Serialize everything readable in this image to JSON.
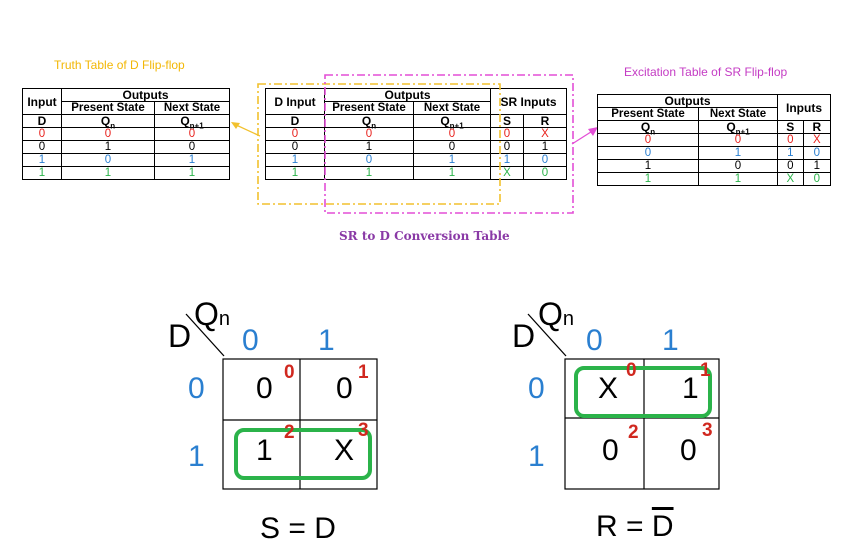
{
  "captions": {
    "d_truth": "Truth Table of D Flip-flop",
    "sr_excitation": "Excitation Table of SR Flip-flop",
    "conversion": "SR to D Conversion Table"
  },
  "headers": {
    "input": "Input",
    "d_input": "D Input",
    "outputs": "Outputs",
    "present_state": "Present State",
    "next_state": "Next State",
    "sr_inputs": "SR Inputs",
    "inputs": "Inputs",
    "d": "D",
    "qn": "Q",
    "qn_sub": "n",
    "qn1_sub": "n+1",
    "s": "S",
    "r": "R"
  },
  "d_truth_rows": [
    {
      "d": "0",
      "q": "0",
      "qn1": "0",
      "color": "red"
    },
    {
      "d": "0",
      "q": "1",
      "qn1": "0",
      "color": "black"
    },
    {
      "d": "1",
      "q": "0",
      "qn1": "1",
      "color": "blue"
    },
    {
      "d": "1",
      "q": "1",
      "qn1": "1",
      "color": "green"
    }
  ],
  "conversion_rows": [
    {
      "d": "0",
      "q": "0",
      "qn1": "0",
      "s": "0",
      "r": "X",
      "color": "red"
    },
    {
      "d": "0",
      "q": "1",
      "qn1": "0",
      "s": "0",
      "r": "1",
      "color": "black"
    },
    {
      "d": "1",
      "q": "0",
      "qn1": "1",
      "s": "1",
      "r": "0",
      "color": "blue"
    },
    {
      "d": "1",
      "q": "1",
      "qn1": "1",
      "s": "X",
      "r": "0",
      "color": "green"
    }
  ],
  "sr_excitation_rows": [
    {
      "q": "0",
      "qn1": "0",
      "s": "0",
      "r": "X",
      "color": "red"
    },
    {
      "q": "0",
      "qn1": "1",
      "s": "1",
      "r": "0",
      "color": "blue"
    },
    {
      "q": "1",
      "qn1": "0",
      "s": "0",
      "r": "1",
      "color": "black"
    },
    {
      "q": "1",
      "qn1": "1",
      "s": "X",
      "r": "0",
      "color": "green"
    }
  ],
  "kmaps": [
    {
      "row_var": "D",
      "col_var": "Q",
      "col_var_sub": "n",
      "col_labels": [
        "0",
        "1"
      ],
      "row_labels": [
        "0",
        "1"
      ],
      "cells": [
        [
          "0",
          "0"
        ],
        [
          "1",
          "X"
        ]
      ],
      "indices": [
        [
          "0",
          "1"
        ],
        [
          "2",
          "3"
        ]
      ],
      "equation": "S = D"
    },
    {
      "row_var": "D",
      "col_var": "Q",
      "col_var_sub": "n",
      "col_labels": [
        "0",
        "1"
      ],
      "row_labels": [
        "0",
        "1"
      ],
      "cells": [
        [
          "X",
          "1"
        ],
        [
          "0",
          "0"
        ]
      ],
      "indices": [
        [
          "0",
          "1"
        ],
        [
          "2",
          "3"
        ]
      ],
      "equation_left": "R = ",
      "equation_bar": "D"
    }
  ],
  "colors": {
    "yellow_dash": "#f2c12e",
    "magenta_dash": "#e34fd6",
    "group": "#2bb34a",
    "index": "#d0281f",
    "axis": "#2a7fd0"
  }
}
